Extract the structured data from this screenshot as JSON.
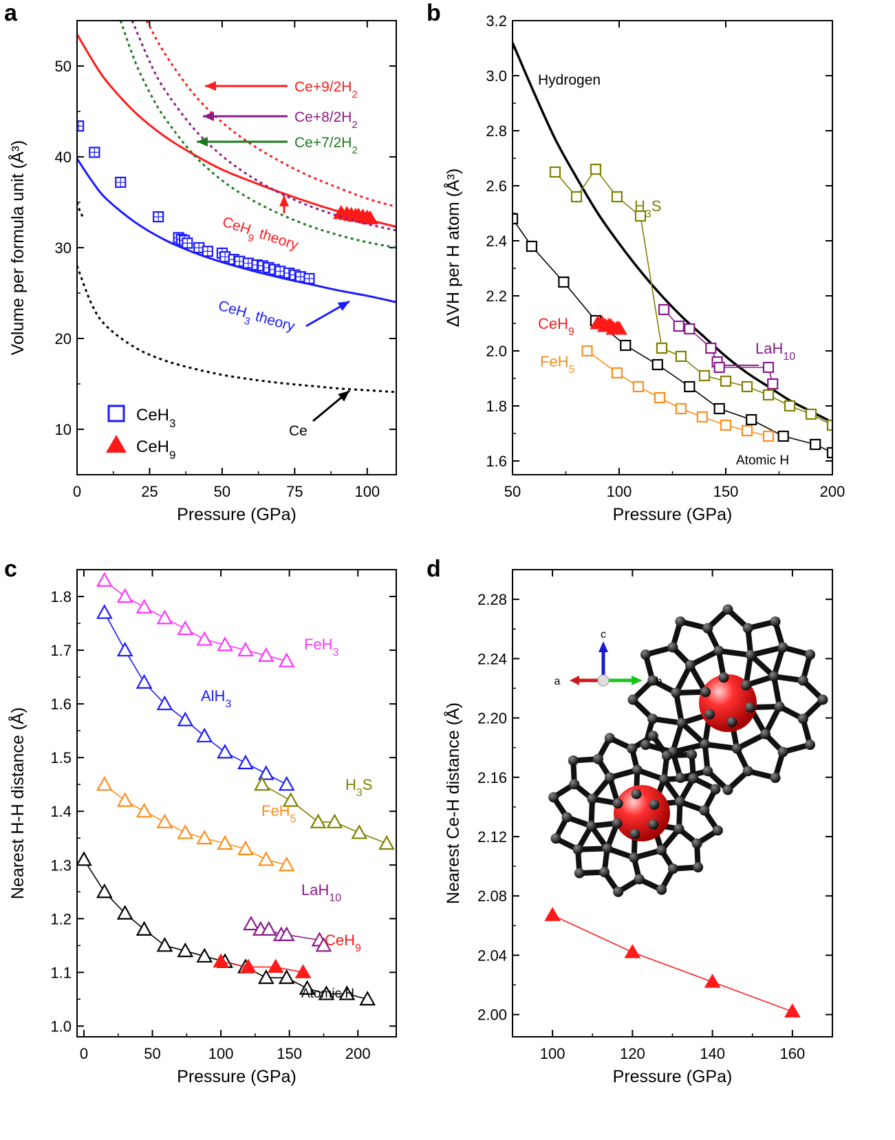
{
  "figure": {
    "panels": [
      "a",
      "b",
      "c",
      "d"
    ]
  },
  "chart_data": [
    {
      "id": "a",
      "panel_label": "a",
      "type": "scatter",
      "xlabel": "Pressure (GPa)",
      "ylabel": "Volume per formula unit (Å³)",
      "xlim": [
        0,
        110
      ],
      "ylim": [
        5,
        55
      ],
      "xticks": [
        0,
        25,
        50,
        75,
        100
      ],
      "yticks": [
        10,
        20,
        30,
        40,
        50
      ],
      "grid": false,
      "legend_position": "bottom-left",
      "series": [
        {
          "name": "CeH3",
          "kind": "markers",
          "marker": "boxplus-square",
          "color": "#1a1aff",
          "x": [
            0.5,
            6,
            15,
            28,
            35,
            36,
            37,
            38,
            42,
            45,
            50,
            51,
            54,
            56,
            59,
            62,
            64,
            66,
            68,
            70,
            73,
            75,
            77,
            80
          ],
          "y": [
            43.4,
            40.5,
            37.2,
            33.4,
            31.1,
            30.9,
            30.8,
            30.5,
            30.0,
            29.6,
            29.4,
            29.0,
            28.7,
            28.5,
            28.3,
            28.1,
            28.0,
            27.8,
            27.6,
            27.4,
            27.2,
            27.0,
            26.8,
            26.6
          ]
        },
        {
          "name": "CeH9",
          "kind": "markers",
          "marker": "triangle",
          "color": "#ff1a1a",
          "x": [
            91,
            93,
            94.5,
            96,
            97,
            98.5,
            100,
            101
          ],
          "y": [
            33.8,
            33.7,
            33.6,
            33.5,
            33.5,
            33.4,
            33.3,
            33.2
          ]
        },
        {
          "name": "CeH3 theory",
          "kind": "line",
          "color": "#1a1aff",
          "dash": "solid",
          "x": [
            0,
            5,
            10,
            20,
            30,
            40,
            50,
            60,
            70,
            80,
            90,
            100,
            110
          ],
          "y": [
            39.8,
            37.4,
            35.4,
            32.8,
            30.9,
            29.5,
            28.4,
            27.5,
            26.7,
            26.0,
            25.3,
            24.7,
            24.0
          ]
        },
        {
          "name": "CeH9 theory",
          "kind": "line",
          "color": "#ff1a1a",
          "dash": "solid",
          "x": [
            0,
            5,
            10,
            20,
            30,
            40,
            50,
            60,
            70,
            80,
            90,
            100,
            110
          ],
          "y": [
            53.5,
            50.8,
            48.4,
            44.9,
            42.3,
            40.3,
            38.6,
            37.3,
            36.1,
            35.0,
            34.0,
            33.1,
            32.3
          ]
        },
        {
          "name": "Ce+9/2H2",
          "kind": "line",
          "color": "#ff1a1a",
          "dash": "dotted",
          "x": [
            24,
            30,
            40,
            50,
            60,
            70,
            80,
            90,
            100,
            110
          ],
          "y": [
            55,
            51.5,
            47.0,
            43.8,
            41.4,
            39.5,
            37.9,
            36.6,
            35.4,
            34.5
          ]
        },
        {
          "name": "Ce+8/2H2",
          "kind": "line",
          "color": "#8a1a8a",
          "dash": "dotted",
          "x": [
            19,
            25,
            30,
            40,
            50,
            60,
            70,
            80,
            90,
            100,
            110
          ],
          "y": [
            55,
            50.5,
            47.5,
            43.2,
            40.1,
            37.8,
            36.0,
            34.6,
            33.5,
            32.6,
            31.9
          ]
        },
        {
          "name": "Ce+7/2H2",
          "kind": "line",
          "color": "#1a7a1a",
          "dash": "dotted",
          "x": [
            15,
            20,
            25,
            30,
            40,
            50,
            60,
            70,
            80,
            90,
            100,
            110
          ],
          "y": [
            55,
            50.5,
            47.1,
            44.4,
            40.3,
            37.4,
            35.3,
            33.7,
            32.4,
            31.4,
            30.6,
            30.0
          ]
        },
        {
          "name": "Ce",
          "kind": "line",
          "color": "#000000",
          "dash": "dotted",
          "x": [
            0,
            5,
            10,
            20,
            30,
            40,
            50,
            60,
            70,
            80,
            90,
            100,
            110
          ],
          "y": [
            28.0,
            23.8,
            21.4,
            19.0,
            17.6,
            16.7,
            16.0,
            15.5,
            15.1,
            14.8,
            14.5,
            14.3,
            14.1
          ]
        },
        {
          "name": "Ce (upper)",
          "kind": "line",
          "color": "#000000",
          "dash": "dotted",
          "x": [
            0,
            1,
            2
          ],
          "y": [
            35.0,
            34.0,
            33.4
          ]
        }
      ],
      "annotations": [
        {
          "text": "Ce+9/2H",
          "sub": "2",
          "color": "#ff1a1a"
        },
        {
          "text": "Ce+8/2H",
          "sub": "2",
          "color": "#8a1a8a"
        },
        {
          "text": "Ce+7/2H",
          "sub": "2",
          "color": "#1a7a1a"
        },
        {
          "text": "CeH",
          "sub": "9",
          "text2": " theory",
          "color": "#ff1a1a"
        },
        {
          "text": "CeH",
          "sub": "3",
          "text2": " theory",
          "color": "#1a1aff"
        },
        {
          "text": "Ce",
          "color": "#000000"
        }
      ],
      "legend": [
        {
          "text": "CeH",
          "sub": "3",
          "marker": "square",
          "color": "#1a1aff"
        },
        {
          "text": "CeH",
          "sub": "9",
          "marker": "triangle",
          "color": "#ff1a1a"
        }
      ]
    },
    {
      "id": "b",
      "panel_label": "b",
      "type": "line",
      "xlabel": "Pressure (GPa)",
      "ylabel": "ΔVH per H atom (Å³)",
      "xlim": [
        50,
        200
      ],
      "ylim": [
        1.55,
        3.2
      ],
      "xticks": [
        50,
        100,
        150,
        200
      ],
      "yticks": [
        1.6,
        1.8,
        2.0,
        2.2,
        2.4,
        2.6,
        2.8,
        3.0,
        3.2
      ],
      "grid": false,
      "series": [
        {
          "name": "Hydrogen",
          "kind": "line",
          "color": "#000000",
          "width": 3.5,
          "x": [
            50,
            60,
            70,
            80,
            90,
            100,
            110,
            120,
            130,
            140,
            150,
            160,
            170,
            180,
            190,
            200
          ],
          "y": [
            3.12,
            2.94,
            2.77,
            2.63,
            2.5,
            2.39,
            2.29,
            2.2,
            2.12,
            2.05,
            1.98,
            1.92,
            1.87,
            1.82,
            1.78,
            1.74
          ]
        },
        {
          "name": "Atomic H",
          "kind": "markers-line",
          "marker": "square",
          "color": "#000000",
          "x": [
            50,
            59,
            74,
            89,
            103,
            118,
            133,
            147,
            162,
            177,
            192,
            200
          ],
          "y": [
            2.48,
            2.38,
            2.25,
            2.11,
            2.02,
            1.95,
            1.87,
            1.79,
            1.75,
            1.69,
            1.66,
            1.63
          ]
        },
        {
          "name": "H3S",
          "kind": "markers-line",
          "marker": "square",
          "color": "#808000",
          "x": [
            70,
            80,
            89,
            99,
            110,
            120
          ],
          "y": [
            2.65,
            2.56,
            2.66,
            2.56,
            2.49,
            2.01
          ]
        },
        {
          "name": "H3S (trend)",
          "kind": "markers-line",
          "marker": "square",
          "color": "#808000",
          "x": [
            120,
            129,
            140,
            150,
            160,
            170,
            180,
            190,
            200
          ],
          "y": [
            2.01,
            1.98,
            1.91,
            1.89,
            1.87,
            1.84,
            1.8,
            1.77,
            1.73
          ]
        },
        {
          "name": "LaH10",
          "kind": "markers-line",
          "marker": "square",
          "color": "#8a1a8a",
          "x": [
            121,
            128,
            133,
            143,
            146,
            147,
            170,
            172
          ],
          "y": [
            2.15,
            2.09,
            2.08,
            2.01,
            1.96,
            1.94,
            1.94,
            1.88
          ]
        },
        {
          "name": "FeH5",
          "kind": "markers-line",
          "marker": "square",
          "color": "#ff8c1a",
          "x": [
            85,
            99,
            109,
            119,
            129,
            139,
            150,
            160,
            170
          ],
          "y": [
            2.0,
            1.92,
            1.87,
            1.83,
            1.79,
            1.76,
            1.73,
            1.71,
            1.69
          ]
        },
        {
          "name": "CeH9",
          "kind": "markers",
          "marker": "triangle",
          "color": "#ff1a1a",
          "x": [
            90,
            92,
            93.5,
            95,
            96,
            97.5,
            99,
            100
          ],
          "y": [
            2.1,
            2.1,
            2.09,
            2.09,
            2.09,
            2.08,
            2.08,
            2.08
          ]
        }
      ],
      "annotations": [
        {
          "text": "Hydrogen",
          "color": "#000000"
        },
        {
          "text": "H",
          "sub": "3",
          "text2": "S",
          "color": "#808000"
        },
        {
          "text": "CeH",
          "sub": "9",
          "color": "#ff1a1a"
        },
        {
          "text": "LaH",
          "sub": "10",
          "color": "#8a1a8a"
        },
        {
          "text": "FeH",
          "sub": "5",
          "color": "#ff8c1a"
        },
        {
          "text": "Atomic H",
          "color": "#000000"
        }
      ]
    },
    {
      "id": "c",
      "panel_label": "c",
      "type": "line",
      "xlabel": "Pressure (GPa)",
      "ylabel": "Nearest H-H distance (Å)",
      "xlim": [
        -5,
        228
      ],
      "ylim": [
        0.98,
        1.85
      ],
      "xticks": [
        0,
        50,
        100,
        150,
        200
      ],
      "yticks": [
        1.0,
        1.1,
        1.2,
        1.3,
        1.4,
        1.5,
        1.6,
        1.7,
        1.8
      ],
      "grid": false,
      "series": [
        {
          "name": "FeH3",
          "kind": "markers-line",
          "marker": "triangle-open",
          "color": "#ff33ff",
          "x": [
            15,
            30,
            44,
            59,
            74,
            88,
            103,
            118,
            133,
            148
          ],
          "y": [
            1.83,
            1.8,
            1.78,
            1.76,
            1.74,
            1.72,
            1.71,
            1.7,
            1.69,
            1.68
          ]
        },
        {
          "name": "AlH3",
          "kind": "markers-line",
          "marker": "triangle-open",
          "color": "#1a1aff",
          "x": [
            15,
            30,
            44,
            59,
            74,
            88,
            103,
            118,
            133,
            148
          ],
          "y": [
            1.77,
            1.7,
            1.64,
            1.6,
            1.57,
            1.54,
            1.51,
            1.49,
            1.47,
            1.45
          ]
        },
        {
          "name": "H3S",
          "kind": "markers-line",
          "marker": "triangle-open",
          "color": "#808000",
          "x": [
            130,
            151,
            171,
            183,
            201,
            221
          ],
          "y": [
            1.45,
            1.42,
            1.38,
            1.38,
            1.36,
            1.34
          ]
        },
        {
          "name": "FeH5",
          "kind": "markers-line",
          "marker": "triangle-open",
          "color": "#ff8c1a",
          "x": [
            15,
            30,
            44,
            59,
            74,
            88,
            103,
            118,
            133,
            148
          ],
          "y": [
            1.45,
            1.42,
            1.4,
            1.38,
            1.36,
            1.35,
            1.34,
            1.33,
            1.31,
            1.3
          ]
        },
        {
          "name": "LaH10",
          "kind": "markers-line",
          "marker": "triangle-open",
          "color": "#8a1a8a",
          "x": [
            122,
            129,
            135,
            144,
            148,
            172,
            175
          ],
          "y": [
            1.19,
            1.18,
            1.18,
            1.17,
            1.17,
            1.16,
            1.15
          ]
        },
        {
          "name": "Atomic H",
          "kind": "markers-line",
          "marker": "triangle-open",
          "color": "#000000",
          "x": [
            0,
            15,
            30,
            44,
            59,
            74,
            88,
            103,
            118,
            133,
            148,
            163,
            177,
            192,
            207
          ],
          "y": [
            1.31,
            1.25,
            1.21,
            1.18,
            1.15,
            1.14,
            1.13,
            1.12,
            1.11,
            1.09,
            1.09,
            1.07,
            1.06,
            1.06,
            1.05
          ]
        },
        {
          "name": "CeH9",
          "kind": "markers-line",
          "marker": "triangle",
          "color": "#ff1a1a",
          "x": [
            100,
            120,
            140,
            160
          ],
          "y": [
            1.12,
            1.11,
            1.11,
            1.1
          ]
        }
      ],
      "annotations": [
        {
          "text": "FeH",
          "sub": "3",
          "color": "#ff33ff"
        },
        {
          "text": "AlH",
          "sub": "3",
          "color": "#1a1aff"
        },
        {
          "text": "H",
          "sub": "3",
          "text2": "S",
          "color": "#808000"
        },
        {
          "text": "FeH",
          "sub": "5",
          "color": "#ff8c1a"
        },
        {
          "text": "LaH",
          "sub": "10",
          "color": "#8a1a8a"
        },
        {
          "text": "CeH",
          "sub": "9",
          "color": "#ff1a1a"
        },
        {
          "text": "Atomic H",
          "color": "#000000"
        }
      ]
    },
    {
      "id": "d",
      "panel_label": "d",
      "type": "line",
      "xlabel": "Pressure (GPa)",
      "ylabel": "Nearest Ce-H distance (Å)",
      "xlim": [
        90,
        170
      ],
      "ylim": [
        1.985,
        2.3
      ],
      "xticks": [
        100,
        120,
        140,
        160
      ],
      "yticks": [
        2.0,
        2.04,
        2.08,
        2.12,
        2.16,
        2.2,
        2.24,
        2.28
      ],
      "grid": false,
      "series": [
        {
          "name": "CeH9",
          "kind": "markers-line",
          "marker": "triangle",
          "color": "#ff1a1a",
          "x": [
            100,
            120,
            140,
            160
          ],
          "y": [
            2.067,
            2.042,
            2.022,
            2.002
          ]
        }
      ],
      "inset": {
        "description_axes": {
          "a": "a",
          "b": "b",
          "c": "c"
        },
        "axis_colors": {
          "a": "#cc1a1a",
          "b": "#1ac41a",
          "c": "#1a1acc"
        }
      }
    }
  ]
}
